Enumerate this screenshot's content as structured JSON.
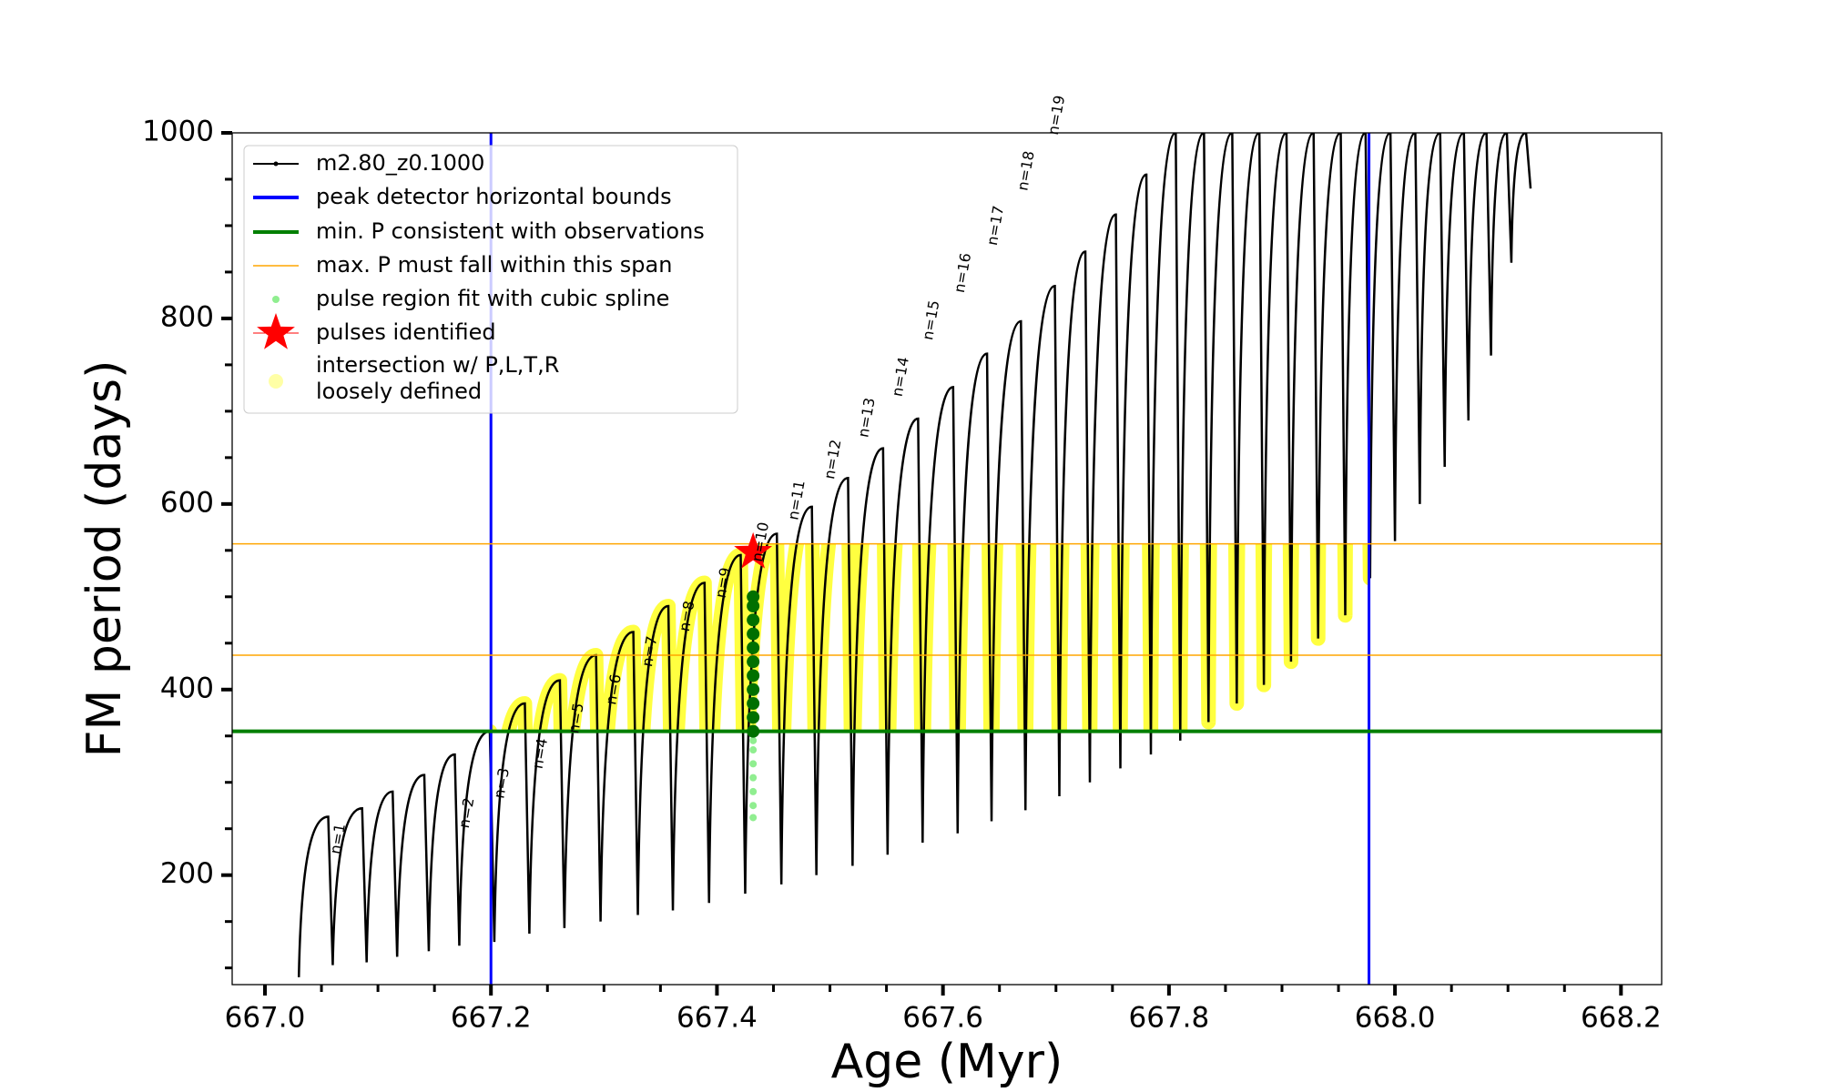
{
  "chart_data": {
    "type": "line",
    "xlabel": "Age (Myr)",
    "ylabel": "FM period (days)",
    "xlim": [
      666.971,
      668.236
    ],
    "ylim": [
      82,
      1000
    ],
    "xticks": [
      {
        "value": 667.0,
        "label": "667.0"
      },
      {
        "value": 667.2,
        "label": "667.2"
      },
      {
        "value": 667.4,
        "label": "667.4"
      },
      {
        "value": 667.6,
        "label": "667.6"
      },
      {
        "value": 667.8,
        "label": "667.8"
      },
      {
        "value": 668.0,
        "label": "668.0"
      },
      {
        "value": 668.2,
        "label": "668.2"
      }
    ],
    "xticks_minor": [
      667.05,
      667.1,
      667.15,
      667.25,
      667.3,
      667.35,
      667.45,
      667.5,
      667.55,
      667.65,
      667.7,
      667.75,
      667.85,
      667.9,
      667.95,
      668.05,
      668.1,
      668.15
    ],
    "yticks": [
      200,
      400,
      600,
      800,
      1000
    ],
    "yticks_minor": [
      100,
      150,
      250,
      300,
      350,
      450,
      500,
      550,
      650,
      700,
      750,
      850,
      900,
      950
    ],
    "legend": "upper left",
    "series": [
      {
        "name": "m2.80_z0.1000",
        "color": "#000000",
        "x": [
          667.03,
          667.056,
          667.06,
          667.086,
          667.09,
          667.113,
          667.117,
          667.141,
          667.145,
          667.168,
          667.172,
          667.199,
          667.203,
          667.23,
          667.234,
          667.261,
          667.265,
          667.293,
          667.297,
          667.326,
          667.33,
          667.357,
          667.361,
          667.389,
          667.393,
          667.421,
          667.425,
          667.453,
          667.457,
          667.484,
          667.488,
          667.516,
          667.52,
          667.547,
          667.551,
          667.578,
          667.582,
          667.609,
          667.613,
          667.639,
          667.643,
          667.669,
          667.673,
          667.699,
          667.703,
          667.726,
          667.73,
          667.753,
          667.757,
          667.78,
          667.784,
          667.806,
          667.81,
          667.831,
          667.835,
          667.856,
          667.86,
          667.88,
          667.884,
          667.904,
          667.908,
          667.928,
          667.932,
          667.952,
          667.956,
          667.974,
          667.978,
          667.996,
          668.0,
          668.018,
          668.022,
          668.04,
          668.044,
          668.061,
          668.065,
          668.081,
          668.085,
          668.099,
          668.103,
          668.116,
          668.12
        ],
        "values": [
          90,
          263,
          103,
          272,
          106,
          290,
          112,
          308,
          118,
          330,
          124,
          355,
          128,
          385,
          137,
          410,
          143,
          437,
          150,
          462,
          157,
          490,
          162,
          515,
          170,
          545,
          180,
          568,
          190,
          597,
          200,
          628,
          210,
          660,
          222,
          692,
          235,
          726,
          245,
          762,
          258,
          797,
          270,
          835,
          285,
          872,
          300,
          912,
          315,
          955,
          330,
          1000,
          345,
          1000,
          365,
          1000,
          385,
          1000,
          405,
          1000,
          430,
          1000,
          455,
          1000,
          480,
          1000,
          520,
          1000,
          560,
          1000,
          600,
          1000,
          640,
          1000,
          690,
          1000,
          760,
          1000,
          860,
          1000,
          940
        ]
      }
    ],
    "vlines": {
      "name": "peak detector horizontal bounds",
      "color": "#0000ff",
      "values": [
        667.2,
        667.977
      ]
    },
    "hline_min": {
      "name": "min. P consistent with observations",
      "color": "#007f00",
      "value": 355
    },
    "hlines_max": {
      "name": "max. P must fall within this span",
      "color": "#ffa500",
      "values": [
        437,
        557
      ]
    },
    "spline": {
      "name": "pulse region fit with cubic spline",
      "color": "#90ee90",
      "fit_color": "#007000",
      "x": [
        667.432,
        667.432,
        667.432,
        667.432,
        667.432,
        667.432,
        667.432,
        667.432,
        667.432,
        667.432,
        667.432,
        667.432,
        667.432,
        667.432,
        667.432,
        667.432,
        667.432,
        667.432
      ],
      "values": [
        262,
        275,
        290,
        305,
        320,
        335,
        345,
        355,
        370,
        385,
        400,
        415,
        430,
        445,
        460,
        475,
        490,
        500
      ]
    },
    "pulses": {
      "name": "pulses identified",
      "color": "#ff0000",
      "x": [
        667.432
      ],
      "values": [
        548
      ]
    },
    "intersection": {
      "name": [
        "intersection w/ P,L,T,R",
        "loosely defined"
      ],
      "color": "#ffff00"
    },
    "annotations": [
      {
        "text": "n=1",
        "x": 667.065,
        "y": 239
      },
      {
        "text": "n=2",
        "x": 667.179,
        "y": 267
      },
      {
        "text": "n=3",
        "x": 667.21,
        "y": 299
      },
      {
        "text": "n=4",
        "x": 667.244,
        "y": 331
      },
      {
        "text": "n=5",
        "x": 667.276,
        "y": 369
      },
      {
        "text": "n=6",
        "x": 667.309,
        "y": 400
      },
      {
        "text": "n=7",
        "x": 667.341,
        "y": 441
      },
      {
        "text": "n=8",
        "x": 667.374,
        "y": 479
      },
      {
        "text": "n=9",
        "x": 667.406,
        "y": 515
      },
      {
        "text": "n=10",
        "x": 667.439,
        "y": 559
      },
      {
        "text": "n=11",
        "x": 667.471,
        "y": 604
      },
      {
        "text": "n=12",
        "x": 667.503,
        "y": 648
      },
      {
        "text": "n=13",
        "x": 667.533,
        "y": 693
      },
      {
        "text": "n=14",
        "x": 667.563,
        "y": 737
      },
      {
        "text": "n=15",
        "x": 667.59,
        "y": 798
      },
      {
        "text": "n=16",
        "x": 667.618,
        "y": 849
      },
      {
        "text": "n=17",
        "x": 667.647,
        "y": 900
      },
      {
        "text": "n=18",
        "x": 667.674,
        "y": 959
      },
      {
        "text": "n=19",
        "x": 667.701,
        "y": 1019
      }
    ]
  }
}
